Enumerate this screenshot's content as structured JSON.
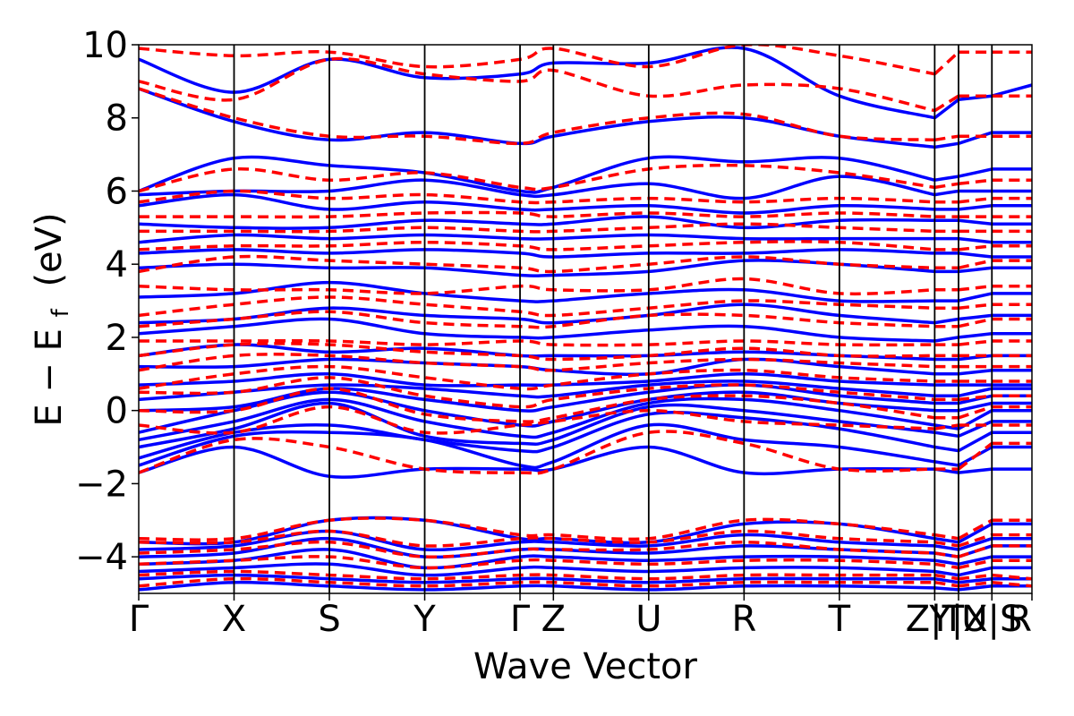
{
  "chart_data": {
    "type": "line",
    "title": "",
    "xlabel": "Wave Vector",
    "ylabel_main": "E − E",
    "ylabel_sub": "f",
    "ylabel_unit": "(eV)",
    "ylim": [
      -5,
      10
    ],
    "yticks": [
      -4,
      -2,
      0,
      2,
      4,
      6,
      8,
      10
    ],
    "ytick_labels": [
      "−4",
      "−2",
      "0",
      "2",
      "4",
      "6",
      "8",
      "10"
    ],
    "x_range": [
      0,
      9.37
    ],
    "kpoints": [
      {
        "label": "Γ",
        "x": 0.0
      },
      {
        "label": "X",
        "x": 1.0
      },
      {
        "label": "S",
        "x": 2.0
      },
      {
        "label": "Y",
        "x": 3.0
      },
      {
        "label": "Γ",
        "x": 4.0
      },
      {
        "label": "Z",
        "x": 4.35
      },
      {
        "label": "U",
        "x": 5.35
      },
      {
        "label": "R",
        "x": 6.35
      },
      {
        "label": "T",
        "x": 7.35
      },
      {
        "label": "Z",
        "x": 8.35
      },
      {
        "label": "|",
        "x": 8.35
      },
      {
        "label": "T",
        "x": 8.35
      },
      {
        "label": "Y",
        "x": 8.6
      },
      {
        "label": "|",
        "x": 8.6
      },
      {
        "label": "X",
        "x": 8.6
      },
      {
        "label": "U",
        "x": 8.95
      },
      {
        "label": "|",
        "x": 8.95
      },
      {
        "label": "S",
        "x": 8.95
      },
      {
        "label": "R",
        "x": 9.37
      }
    ],
    "segment_breaks": [
      8.35,
      8.6,
      8.95
    ],
    "series": [
      {
        "name": "solid-blue",
        "color": "#0000ff",
        "style": "solid",
        "bands_at_kpoints": [
          [
            -4.9,
            -4.7,
            -4.8,
            -4.9,
            -4.8,
            -4.8,
            -4.9,
            -4.8,
            -4.8,
            -4.85,
            -4.9,
            -4.8,
            -4.8
          ],
          [
            -4.6,
            -4.5,
            -4.6,
            -4.7,
            -4.6,
            -4.6,
            -4.7,
            -4.6,
            -4.6,
            -4.6,
            -4.7,
            -4.6,
            -4.6
          ],
          [
            -4.4,
            -4.3,
            -4.2,
            -4.5,
            -4.3,
            -4.3,
            -4.4,
            -4.3,
            -4.3,
            -4.4,
            -4.5,
            -4.3,
            -4.3
          ],
          [
            -4.2,
            -4.1,
            -3.8,
            -4.3,
            -4.0,
            -4.0,
            -4.1,
            -4.0,
            -4.0,
            -4.1,
            -4.2,
            -4.0,
            -4.0
          ],
          [
            -4.0,
            -3.9,
            -3.5,
            -4.0,
            -3.8,
            -3.8,
            -3.9,
            -3.7,
            -3.8,
            -3.9,
            -4.0,
            -3.7,
            -3.7
          ],
          [
            -3.8,
            -3.7,
            -3.3,
            -3.8,
            -3.6,
            -3.6,
            -3.7,
            -3.4,
            -3.6,
            -3.7,
            -3.8,
            -3.5,
            -3.5
          ],
          [
            -3.6,
            -3.6,
            -3.0,
            -3.0,
            -3.5,
            -3.5,
            -3.6,
            -3.1,
            -3.1,
            -3.5,
            -3.6,
            -3.1,
            -3.1
          ],
          [
            -1.7,
            -1.0,
            -1.8,
            -1.6,
            -1.6,
            -1.6,
            -1.0,
            -1.7,
            -1.6,
            -1.6,
            -1.7,
            -1.6,
            -1.6
          ],
          [
            -1.5,
            -0.7,
            -0.6,
            -0.8,
            -1.5,
            -1.4,
            -0.4,
            -0.8,
            -1.0,
            -1.4,
            -1.5,
            -1.0,
            -1.0
          ],
          [
            -1.3,
            -0.6,
            -0.4,
            -0.8,
            -1.1,
            -1.0,
            -0.1,
            -0.2,
            -0.5,
            -1.0,
            -1.1,
            -0.6,
            -0.6
          ],
          [
            -1.0,
            -0.5,
            0.2,
            -0.7,
            -0.9,
            -0.8,
            0.1,
            0.0,
            -0.3,
            -0.6,
            -0.7,
            -0.3,
            -0.3
          ],
          [
            -0.8,
            -0.3,
            0.3,
            -0.3,
            -0.7,
            -0.6,
            0.2,
            0.3,
            0.0,
            -0.4,
            -0.5,
            0.0,
            0.0
          ],
          [
            -0.6,
            0.0,
            0.5,
            0.0,
            -0.4,
            -0.3,
            0.3,
            0.5,
            0.2,
            0.0,
            0.0,
            0.2,
            0.2
          ],
          [
            0.0,
            0.1,
            0.6,
            0.3,
            0.0,
            0.1,
            0.5,
            0.7,
            0.4,
            0.2,
            0.2,
            0.4,
            0.4
          ],
          [
            0.3,
            0.5,
            0.7,
            0.6,
            0.4,
            0.4,
            0.7,
            0.8,
            0.6,
            0.4,
            0.4,
            0.6,
            0.6
          ],
          [
            0.7,
            0.8,
            1.0,
            0.7,
            0.7,
            0.7,
            0.8,
            1.0,
            0.8,
            0.7,
            0.7,
            0.7,
            0.7
          ],
          [
            1.2,
            1.2,
            1.4,
            1.3,
            1.2,
            1.1,
            1.0,
            1.4,
            1.2,
            1.0,
            1.0,
            1.1,
            1.1
          ],
          [
            1.5,
            1.8,
            1.6,
            1.7,
            1.5,
            1.5,
            1.5,
            1.6,
            1.5,
            1.4,
            1.4,
            1.5,
            1.5
          ],
          [
            2.1,
            2.3,
            2.5,
            2.1,
            2.0,
            2.0,
            2.2,
            2.3,
            2.0,
            1.9,
            2.0,
            2.1,
            2.1
          ],
          [
            2.4,
            2.5,
            2.8,
            2.6,
            2.5,
            2.4,
            2.6,
            2.9,
            2.6,
            2.4,
            2.5,
            2.6,
            2.6
          ],
          [
            3.1,
            3.2,
            3.5,
            3.2,
            3.0,
            3.0,
            3.2,
            3.3,
            3.0,
            3.0,
            3.0,
            3.2,
            3.2
          ],
          [
            3.9,
            4.0,
            3.9,
            3.9,
            3.7,
            3.7,
            3.8,
            4.1,
            4.0,
            3.8,
            3.8,
            3.9,
            3.9
          ],
          [
            4.3,
            4.4,
            4.3,
            4.4,
            4.3,
            4.2,
            4.3,
            4.3,
            4.4,
            4.3,
            4.3,
            4.2,
            4.2
          ],
          [
            4.6,
            4.8,
            4.7,
            4.8,
            4.7,
            4.7,
            4.8,
            4.7,
            4.7,
            4.7,
            4.7,
            4.6,
            4.6
          ],
          [
            5.1,
            5.0,
            5.0,
            5.2,
            5.1,
            5.1,
            5.3,
            5.0,
            5.2,
            5.2,
            5.2,
            5.1,
            5.1
          ],
          [
            5.6,
            5.9,
            5.5,
            5.7,
            5.5,
            5.5,
            5.6,
            5.4,
            5.6,
            5.5,
            5.5,
            5.6,
            5.6
          ],
          [
            5.9,
            6.0,
            6.0,
            6.3,
            5.9,
            5.9,
            6.2,
            5.8,
            6.4,
            5.9,
            6.0,
            6.0,
            6.0
          ],
          [
            6.0,
            6.9,
            6.7,
            6.5,
            6.0,
            6.1,
            6.9,
            6.8,
            6.9,
            6.3,
            6.4,
            6.6,
            6.6
          ],
          [
            8.8,
            7.9,
            7.4,
            7.6,
            7.3,
            7.5,
            7.9,
            8.0,
            7.5,
            7.2,
            7.3,
            7.6,
            7.6
          ],
          [
            9.6,
            8.7,
            9.6,
            9.1,
            9.2,
            9.5,
            9.5,
            9.9,
            8.6,
            8.0,
            8.5,
            8.6,
            8.9
          ]
        ]
      },
      {
        "name": "dashed-red",
        "color": "#ff0000",
        "style": "dashed",
        "bands_at_kpoints": [
          [
            -4.8,
            -4.6,
            -4.7,
            -4.8,
            -4.7,
            -4.7,
            -4.8,
            -4.7,
            -4.7,
            -4.7,
            -4.8,
            -4.7,
            -4.8
          ],
          [
            -4.5,
            -4.4,
            -4.5,
            -4.6,
            -4.5,
            -4.5,
            -4.6,
            -4.5,
            -4.5,
            -4.5,
            -4.6,
            -4.5,
            -4.6
          ],
          [
            -4.2,
            -4.1,
            -4.0,
            -4.3,
            -4.1,
            -4.1,
            -4.2,
            -4.1,
            -4.1,
            -4.2,
            -4.3,
            -4.1,
            -4.1
          ],
          [
            -3.9,
            -3.8,
            -3.6,
            -4.0,
            -3.8,
            -3.8,
            -3.8,
            -3.6,
            -3.8,
            -3.9,
            -4.0,
            -3.7,
            -3.7
          ],
          [
            -3.6,
            -3.6,
            -3.3,
            -3.7,
            -3.5,
            -3.5,
            -3.6,
            -3.3,
            -3.5,
            -3.6,
            -3.7,
            -3.4,
            -3.4
          ],
          [
            -3.5,
            -3.5,
            -3.0,
            -3.0,
            -3.4,
            -3.4,
            -3.5,
            -3.0,
            -3.1,
            -3.4,
            -3.5,
            -3.0,
            -3.0
          ],
          [
            -1.7,
            -0.8,
            -1.0,
            -1.6,
            -1.7,
            -1.6,
            -0.6,
            -0.9,
            -1.6,
            -1.6,
            -1.6,
            -0.9,
            -0.9
          ],
          [
            -0.4,
            -0.6,
            0.1,
            -0.6,
            -0.4,
            -0.3,
            0.0,
            -0.3,
            -0.4,
            -0.5,
            -0.4,
            -0.4,
            -0.4
          ],
          [
            0.0,
            0.0,
            0.6,
            -0.1,
            -0.3,
            -0.2,
            0.3,
            0.4,
            0.2,
            -0.2,
            -0.2,
            0.1,
            0.1
          ],
          [
            0.5,
            0.5,
            0.9,
            0.4,
            0.1,
            0.3,
            0.6,
            0.7,
            0.5,
            0.3,
            0.3,
            0.4,
            0.4
          ],
          [
            0.6,
            1.0,
            1.2,
            0.9,
            0.6,
            0.7,
            1.0,
            1.1,
            0.9,
            0.8,
            0.8,
            0.8,
            0.8
          ],
          [
            1.1,
            1.5,
            1.5,
            1.3,
            1.2,
            1.1,
            1.3,
            1.4,
            1.3,
            1.2,
            1.2,
            1.2,
            1.2
          ],
          [
            1.5,
            1.8,
            1.8,
            1.6,
            1.5,
            1.4,
            1.5,
            1.7,
            1.5,
            1.5,
            1.5,
            1.5,
            1.5
          ],
          [
            1.9,
            1.9,
            1.9,
            1.8,
            1.9,
            1.8,
            1.8,
            1.9,
            1.8,
            1.8,
            1.8,
            1.9,
            1.9
          ],
          [
            2.3,
            2.5,
            2.7,
            2.4,
            2.3,
            2.3,
            2.6,
            2.6,
            2.4,
            2.3,
            2.3,
            2.5,
            2.5
          ],
          [
            2.6,
            2.9,
            3.1,
            2.9,
            2.7,
            2.6,
            2.8,
            3.0,
            2.9,
            2.8,
            2.8,
            2.9,
            2.9
          ],
          [
            3.4,
            3.3,
            3.3,
            3.2,
            3.4,
            3.3,
            3.3,
            3.6,
            3.2,
            3.3,
            3.3,
            3.4,
            3.4
          ],
          [
            3.8,
            4.2,
            4.1,
            4.0,
            3.9,
            3.8,
            4.0,
            4.2,
            4.0,
            3.9,
            3.9,
            4.1,
            4.1
          ],
          [
            4.4,
            4.5,
            4.5,
            4.6,
            4.5,
            4.4,
            4.5,
            4.6,
            4.6,
            4.4,
            4.4,
            4.5,
            4.5
          ],
          [
            4.9,
            4.9,
            4.9,
            5.0,
            4.9,
            4.9,
            5.0,
            5.1,
            5.0,
            4.9,
            4.9,
            4.9,
            4.9
          ],
          [
            5.3,
            5.3,
            5.3,
            5.4,
            5.4,
            5.3,
            5.4,
            5.3,
            5.4,
            5.3,
            5.3,
            5.3,
            5.3
          ],
          [
            5.7,
            6.0,
            5.8,
            5.9,
            5.7,
            5.7,
            5.8,
            5.7,
            5.8,
            5.7,
            5.7,
            5.8,
            5.8
          ],
          [
            6.0,
            6.6,
            6.3,
            6.5,
            6.1,
            6.1,
            6.6,
            6.7,
            6.5,
            6.1,
            6.2,
            6.3,
            6.3
          ],
          [
            8.8,
            8.0,
            7.5,
            7.5,
            7.3,
            7.6,
            8.0,
            8.1,
            7.5,
            7.4,
            7.5,
            7.5,
            7.5
          ],
          [
            9.0,
            8.5,
            9.6,
            9.2,
            9.0,
            9.3,
            8.6,
            8.9,
            8.8,
            8.2,
            8.6,
            8.6,
            8.6
          ],
          [
            9.9,
            9.7,
            9.8,
            9.4,
            9.6,
            9.9,
            9.4,
            10.0,
            9.7,
            9.2,
            9.8,
            9.8,
            9.8
          ]
        ]
      }
    ]
  }
}
